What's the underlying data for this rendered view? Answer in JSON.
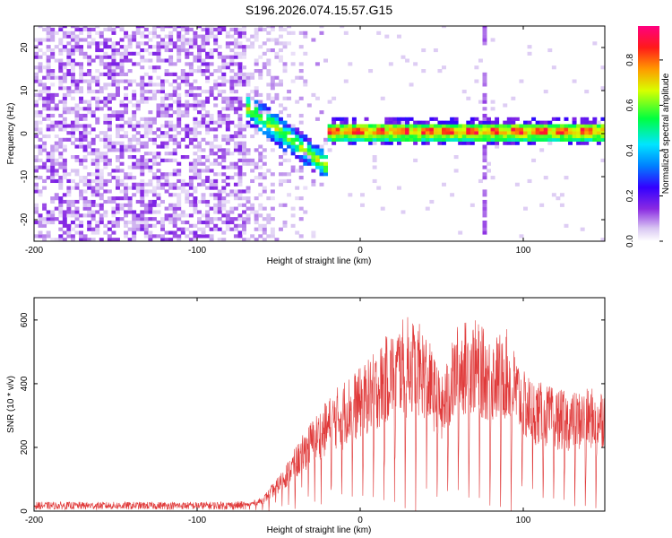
{
  "title": "S196.2026.074.15.57.G15",
  "chart_data": [
    {
      "type": "heatmap",
      "xlabel": "Height of straight line (km)",
      "ylabel": "Frequency (Hz)",
      "xlim": [
        -200,
        150
      ],
      "ylim": [
        -25,
        25
      ],
      "xticks": [
        -200,
        -100,
        0,
        100
      ],
      "yticks": [
        -20,
        -10,
        0,
        10,
        20
      ],
      "colorbar": {
        "label": "Normalized spectral amplitude",
        "range": [
          0,
          0.95
        ],
        "ticks": [
          0.0,
          0.2,
          0.4,
          0.6,
          0.8
        ],
        "colormap": "rainbow (white-lavender-purple-blue-cyan-green-yellow-red-magenta)"
      },
      "features": [
        {
          "name": "noise",
          "x_range": [
            -200,
            -70
          ],
          "freq_range": [
            -25,
            25
          ]
        },
        {
          "name": "diagonal trace",
          "x_range": [
            -70,
            -20
          ],
          "freq_start": 6,
          "freq_end": -12
        },
        {
          "name": "spectral line",
          "x_range": [
            -20,
            150
          ],
          "freq": 0.5
        },
        {
          "name": "vertical stripe",
          "x": 75
        }
      ]
    },
    {
      "type": "line",
      "xlabel": "Height of straight line (km)",
      "ylabel": "SNR (10 * v/v)",
      "xlim": [
        -200,
        150
      ],
      "ylim": [
        0,
        670
      ],
      "xticks": [
        -200,
        -100,
        0,
        100
      ],
      "yticks": [
        0,
        200,
        400,
        600
      ],
      "color": "#e03a3a",
      "series": [
        {
          "x": [
            -200,
            -150,
            -100,
            -70,
            -60,
            -50,
            -40,
            -30,
            -20,
            -10,
            0,
            10,
            20,
            30,
            40,
            50,
            60,
            70,
            80,
            90,
            100,
            110,
            120,
            130,
            140,
            150
          ],
          "values": [
            20,
            20,
            20,
            22,
            40,
            100,
            180,
            260,
            320,
            380,
            410,
            460,
            530,
            560,
            520,
            380,
            540,
            550,
            500,
            520,
            400,
            370,
            350,
            340,
            350,
            360
          ]
        }
      ]
    }
  ]
}
